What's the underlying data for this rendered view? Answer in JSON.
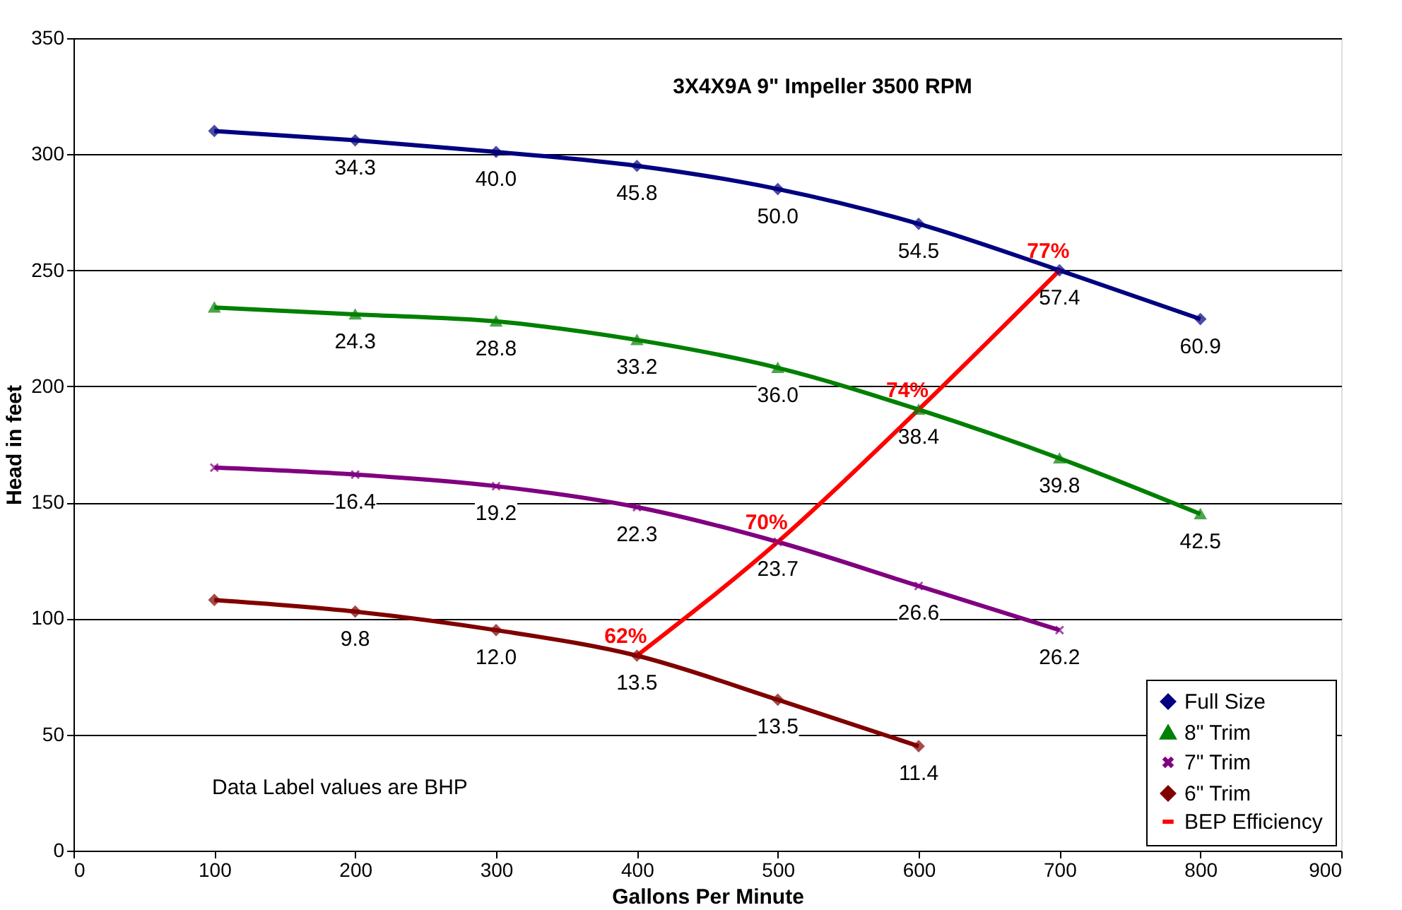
{
  "chart_data": {
    "type": "line",
    "title": "3X4X9A 9\" Impeller 3500 RPM",
    "xlabel": "Gallons Per Minute",
    "ylabel": "Head in feet",
    "annotations": [
      "Data Label values are BHP",
      {
        "text": "34.3",
        "x": 200,
        "y": 306
      },
      {
        "text": "40.0",
        "x": 300,
        "y": 301
      },
      {
        "text": "45.8",
        "x": 400,
        "y": 295
      },
      {
        "text": "50.0",
        "x": 500,
        "y": 285
      },
      {
        "text": "54.5",
        "x": 600,
        "y": 270
      },
      {
        "text": "57.4",
        "x": 700,
        "y": 250
      },
      {
        "text": "60.9",
        "x": 800,
        "y": 229
      },
      {
        "text": "24.3",
        "x": 200,
        "y": 231
      },
      {
        "text": "28.8",
        "x": 300,
        "y": 228
      },
      {
        "text": "33.2",
        "x": 400,
        "y": 220
      },
      {
        "text": "36.0",
        "x": 500,
        "y": 208
      },
      {
        "text": "38.4",
        "x": 600,
        "y": 190
      },
      {
        "text": "39.8",
        "x": 700,
        "y": 169
      },
      {
        "text": "42.5",
        "x": 800,
        "y": 145
      },
      {
        "text": "16.4",
        "x": 200,
        "y": 162
      },
      {
        "text": "19.2",
        "x": 300,
        "y": 157
      },
      {
        "text": "22.3",
        "x": 400,
        "y": 148
      },
      {
        "text": "23.7",
        "x": 500,
        "y": 133
      },
      {
        "text": "26.6",
        "x": 600,
        "y": 114
      },
      {
        "text": "26.2",
        "x": 700,
        "y": 95
      },
      {
        "text": "9.8",
        "x": 200,
        "y": 103
      },
      {
        "text": "12.0",
        "x": 300,
        "y": 95
      },
      {
        "text": "13.5",
        "x": 400,
        "y": 84
      },
      {
        "text": "13.5",
        "x": 500,
        "y": 65
      },
      {
        "text": "11.4",
        "x": 600,
        "y": 45
      },
      {
        "text": "62%",
        "x": 400,
        "y": 84
      },
      {
        "text": "70%",
        "x": 500,
        "y": 133
      },
      {
        "text": "74%",
        "x": 600,
        "y": 190
      },
      {
        "text": "77%",
        "x": 700,
        "y": 250
      }
    ],
    "x": [
      100,
      200,
      300,
      400,
      500,
      600,
      700,
      800
    ],
    "series": [
      {
        "name": "Full Size",
        "color": "#000080",
        "marker": "diamond",
        "values": [
          310,
          306,
          301,
          295,
          285,
          270,
          250,
          229
        ]
      },
      {
        "name": "8\" Trim",
        "color": "#008000",
        "marker": "triangle",
        "values": [
          234,
          231,
          228,
          220,
          208,
          190,
          169,
          145
        ]
      },
      {
        "name": "7\" Trim",
        "color": "#800080",
        "marker": "cross",
        "values": [
          165,
          162,
          157,
          148,
          133,
          114,
          95,
          null
        ]
      },
      {
        "name": "6\" Trim",
        "color": "#800000",
        "marker": "diamond",
        "values": [
          108,
          103,
          95,
          84,
          65,
          45,
          null,
          null
        ]
      },
      {
        "name": "BEP Efficiency",
        "color": "#ff0000",
        "marker": "none",
        "x": [
          400,
          500,
          600,
          700
        ],
        "values": [
          84,
          133,
          190,
          250
        ]
      }
    ],
    "xlim": [
      0,
      900
    ],
    "xticks": [
      0,
      100,
      200,
      300,
      400,
      500,
      600,
      700,
      800,
      900
    ],
    "ylim": [
      0,
      350
    ],
    "yticks": [
      0,
      50,
      100,
      150,
      200,
      250,
      300,
      350
    ],
    "grid": "y",
    "legend": "bottom right"
  }
}
